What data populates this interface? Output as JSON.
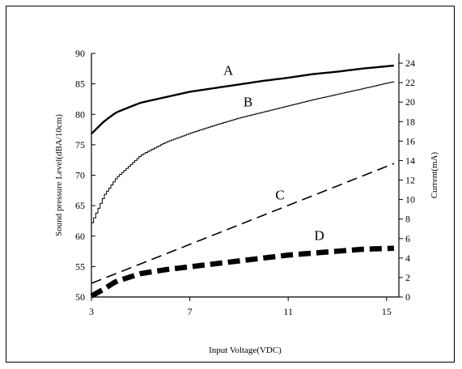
{
  "chart_data": {
    "type": "line",
    "xlabel": "Input Voltage(VDC)",
    "ylabel": "Sound pressure Level(dBA/10cm)",
    "y2label": "Current(mA)",
    "xlim": [
      3,
      15.5
    ],
    "ylim": [
      50,
      90
    ],
    "y2lim": [
      0,
      25
    ],
    "x_ticks": [
      "3",
      "7",
      "11",
      "15"
    ],
    "y_ticks": [
      "50",
      "55",
      "60",
      "65",
      "70",
      "75",
      "80",
      "85",
      "90"
    ],
    "y2_ticks": [
      "0",
      "2",
      "4",
      "6",
      "8",
      "10",
      "12",
      "14",
      "16",
      "18",
      "20",
      "22",
      "24"
    ],
    "grid": false,
    "series": [
      {
        "name": "A",
        "axis": "left",
        "style": "solid-thick",
        "x": [
          3,
          3.5,
          4,
          5,
          6,
          7,
          8,
          9,
          10,
          11,
          12,
          13,
          14,
          15.3
        ],
        "y": [
          76.8,
          78.8,
          80.3,
          81.9,
          82.8,
          83.7,
          84.3,
          84.9,
          85.5,
          86.0,
          86.6,
          87.0,
          87.5,
          88.0
        ]
      },
      {
        "name": "B",
        "axis": "left",
        "style": "solid-thin",
        "x": [
          3,
          3.5,
          4,
          5,
          6,
          7,
          8,
          9,
          10,
          11,
          12,
          13,
          14,
          15.3
        ],
        "y": [
          62.2,
          66.7,
          69.6,
          73.3,
          75.4,
          76.9,
          78.2,
          79.4,
          80.4,
          81.4,
          82.4,
          83.3,
          84.2,
          85.4
        ]
      },
      {
        "name": "C",
        "axis": "right",
        "style": "dashed-thin",
        "x": [
          3,
          15.3
        ],
        "y": [
          1.4,
          13.7
        ]
      },
      {
        "name": "D",
        "axis": "right",
        "style": "dashed-thick",
        "x": [
          3,
          3.5,
          4,
          5,
          6,
          7,
          8,
          9,
          10,
          11,
          12,
          13,
          14,
          15.3
        ],
        "y": [
          0.1,
          0.8,
          1.6,
          2.4,
          2.8,
          3.1,
          3.4,
          3.7,
          4.0,
          4.3,
          4.5,
          4.7,
          4.9,
          5.0
        ]
      }
    ]
  }
}
